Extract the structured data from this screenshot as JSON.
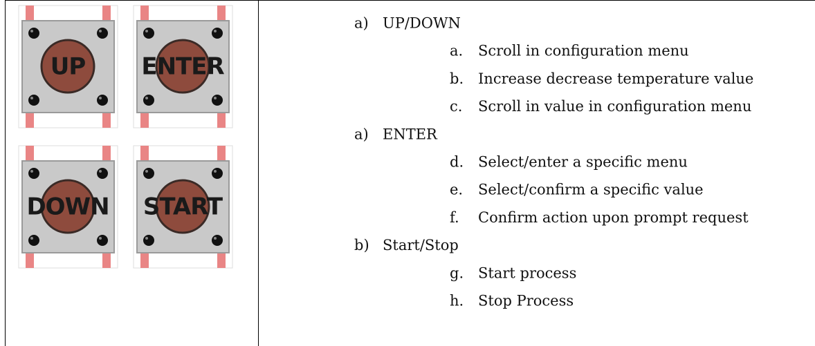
{
  "buttons": [
    {
      "label": "UP"
    },
    {
      "label": "ENTER"
    },
    {
      "label": "DOWN"
    },
    {
      "label": "START"
    }
  ],
  "list": [
    {
      "marker": "a)",
      "title": "UP/DOWN",
      "items": [
        {
          "marker": "a.",
          "text": "Scroll in configuration menu"
        },
        {
          "marker": "b.",
          "text": "Increase decrease temperature value"
        },
        {
          "marker": "c.",
          "text": "Scroll in value in configuration menu"
        }
      ]
    },
    {
      "marker": "a)",
      "title": "ENTER",
      "items": [
        {
          "marker": "d.",
          "text": "Select/enter a specific menu"
        },
        {
          "marker": "e.",
          "text": "Select/confirm a specific value"
        },
        {
          "marker": "f.",
          "text": "Confirm action upon prompt request"
        }
      ]
    },
    {
      "marker": "b)",
      "title": "Start/Stop",
      "items": [
        {
          "marker": "g.",
          "text": "Start process"
        },
        {
          "marker": "h.",
          "text": "Stop Process"
        }
      ]
    }
  ]
}
